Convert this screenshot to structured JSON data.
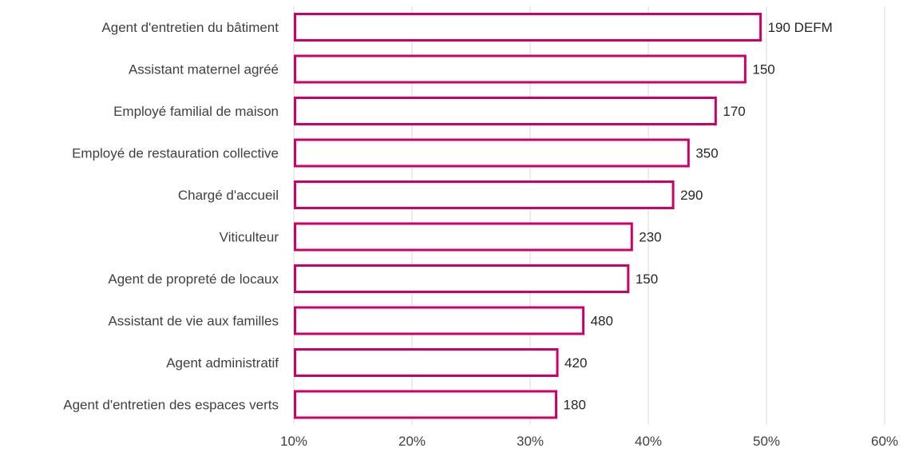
{
  "chart_data": {
    "type": "bar",
    "orientation": "horizontal",
    "categories": [
      "Agent d'entretien du bâtiment",
      "Assistant maternel agréé ",
      "Employé familial de maison",
      "Employé de restauration collective",
      "Chargé d'accueil",
      "Viticulteur",
      "Agent de propreté de locaux",
      "Assistant de vie aux familles",
      "Agent administratif",
      "Agent d'entretien des espaces verts"
    ],
    "values": [
      49.5,
      48.2,
      45.7,
      43.4,
      42.1,
      38.6,
      38.3,
      34.5,
      32.3,
      32.2
    ],
    "data_labels": [
      "190 DEFM",
      "150",
      "170",
      "350",
      "290",
      "230",
      "150",
      "480",
      "420",
      "180"
    ],
    "xlim": [
      10,
      60
    ],
    "x_ticks": [
      10,
      20,
      30,
      40,
      50,
      60
    ],
    "x_tick_labels": [
      "10%",
      "20%",
      "30%",
      "40%",
      "50%",
      "60%"
    ],
    "bar_color": "#cc0066",
    "grid": true,
    "legend": "none"
  }
}
